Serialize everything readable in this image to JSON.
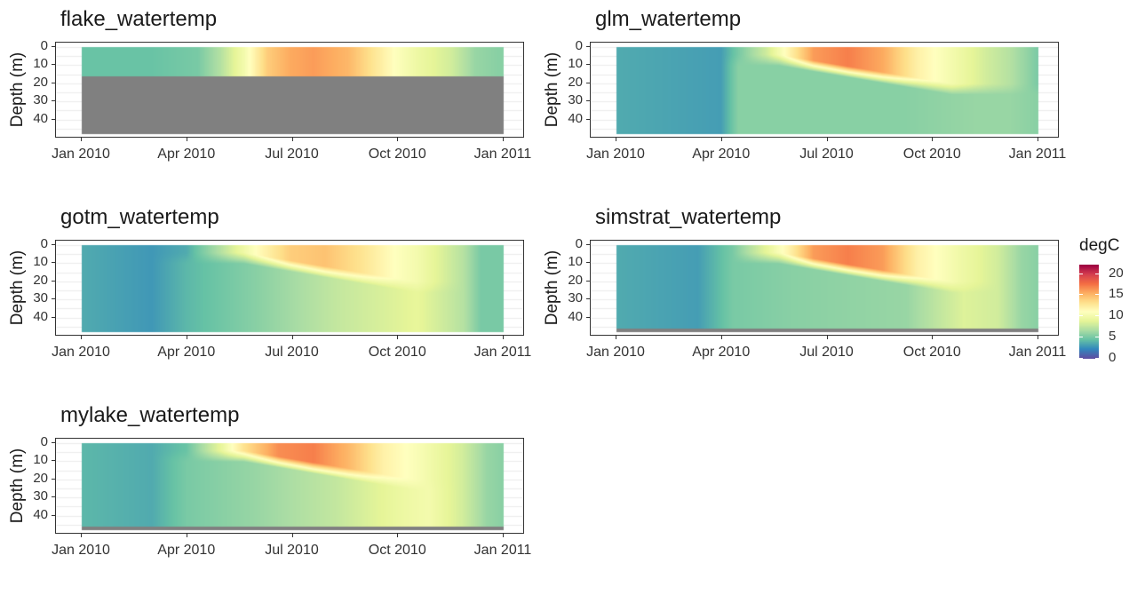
{
  "legend": {
    "title": "degC",
    "ticks": [
      "0",
      "5",
      "10",
      "15",
      "20"
    ],
    "tick_values": [
      0,
      5,
      10,
      15,
      20
    ],
    "range": [
      0,
      22
    ]
  },
  "chart_data": [
    {
      "type": "heatmap",
      "title": "flake_watertemp",
      "xlabel": "",
      "ylabel": "Depth (m)",
      "x_ticks": [
        "Jan 2010",
        "Apr 2010",
        "Jul 2010",
        "Oct 2010",
        "Jan 2011"
      ],
      "y_ticks": [
        "0",
        "10",
        "20",
        "30",
        "40"
      ],
      "xlim": [
        "2010-01-01",
        "2011-01-01"
      ],
      "ylim": [
        48,
        0
      ],
      "grey_below_depth": 16,
      "surface_profile": [
        [
          0,
          4.5
        ],
        [
          60,
          4.5
        ],
        [
          100,
          5
        ],
        [
          120,
          7
        ],
        [
          140,
          10
        ],
        [
          160,
          14
        ],
        [
          180,
          15.5
        ],
        [
          200,
          16
        ],
        [
          230,
          15
        ],
        [
          250,
          13
        ],
        [
          270,
          11
        ],
        [
          290,
          9.5
        ],
        [
          320,
          8
        ],
        [
          340,
          6
        ],
        [
          360,
          5.5
        ],
        [
          365,
          5.5
        ]
      ]
    },
    {
      "type": "heatmap",
      "title": "glm_watertemp",
      "xlabel": "",
      "ylabel": "Depth (m)",
      "x_ticks": [
        "Jan 2010",
        "Apr 2010",
        "Jul 2010",
        "Oct 2010",
        "Jan 2011"
      ],
      "y_ticks": [
        "0",
        "10",
        "20",
        "30",
        "40"
      ],
      "xlim": [
        "2010-01-01",
        "2011-01-01"
      ],
      "ylim": [
        48,
        0
      ],
      "surface_profile": [
        [
          0,
          3.5
        ],
        [
          90,
          3
        ],
        [
          105,
          5
        ],
        [
          130,
          8
        ],
        [
          150,
          12
        ],
        [
          170,
          16
        ],
        [
          200,
          17
        ],
        [
          230,
          15.5
        ],
        [
          260,
          12
        ],
        [
          290,
          10
        ],
        [
          320,
          8
        ],
        [
          340,
          7
        ],
        [
          365,
          5
        ]
      ],
      "deep_profile": [
        [
          0,
          3.5
        ],
        [
          90,
          3
        ],
        [
          105,
          5.5
        ],
        [
          150,
          5.5
        ],
        [
          250,
          5.5
        ],
        [
          310,
          6
        ],
        [
          340,
          6
        ],
        [
          365,
          5.5
        ]
      ]
    },
    {
      "type": "heatmap",
      "title": "gotm_watertemp",
      "xlabel": "",
      "ylabel": "Depth (m)",
      "x_ticks": [
        "Jan 2010",
        "Apr 2010",
        "Jul 2010",
        "Oct 2010",
        "Jan 2011"
      ],
      "y_ticks": [
        "0",
        "10",
        "20",
        "30",
        "40"
      ],
      "xlim": [
        "2010-01-01",
        "2011-01-01"
      ],
      "ylim": [
        48,
        0
      ],
      "surface_profile": [
        [
          0,
          3.5
        ],
        [
          60,
          2.8
        ],
        [
          90,
          3.5
        ],
        [
          120,
          7
        ],
        [
          150,
          11
        ],
        [
          180,
          14
        ],
        [
          210,
          14.5
        ],
        [
          240,
          13
        ],
        [
          270,
          11
        ],
        [
          290,
          10
        ],
        [
          330,
          7
        ],
        [
          345,
          5
        ],
        [
          365,
          5
        ]
      ],
      "deep_profile": [
        [
          0,
          3.5
        ],
        [
          60,
          2.8
        ],
        [
          90,
          4
        ],
        [
          150,
          5.5
        ],
        [
          220,
          7.5
        ],
        [
          270,
          8.5
        ],
        [
          290,
          9
        ],
        [
          330,
          7
        ],
        [
          345,
          5
        ],
        [
          365,
          5
        ]
      ]
    },
    {
      "type": "heatmap",
      "title": "simstrat_watertemp",
      "xlabel": "",
      "ylabel": "Depth (m)",
      "x_ticks": [
        "Jan 2010",
        "Apr 2010",
        "Jul 2010",
        "Oct 2010",
        "Jan 2011"
      ],
      "y_ticks": [
        "0",
        "10",
        "20",
        "30",
        "40"
      ],
      "xlim": [
        "2010-01-01",
        "2011-01-01"
      ],
      "ylim": [
        48,
        0
      ],
      "grey_below_depth": 46,
      "surface_profile": [
        [
          0,
          3.5
        ],
        [
          70,
          3
        ],
        [
          100,
          5
        ],
        [
          130,
          9
        ],
        [
          150,
          12
        ],
        [
          170,
          16
        ],
        [
          200,
          17
        ],
        [
          230,
          16
        ],
        [
          260,
          12
        ],
        [
          300,
          9.5
        ],
        [
          330,
          8
        ],
        [
          350,
          6
        ],
        [
          365,
          5.5
        ]
      ],
      "deep_profile": [
        [
          0,
          3.5
        ],
        [
          70,
          3
        ],
        [
          100,
          5
        ],
        [
          150,
          5.5
        ],
        [
          250,
          6
        ],
        [
          300,
          8.5
        ],
        [
          330,
          8
        ],
        [
          350,
          6
        ],
        [
          365,
          5.5
        ]
      ]
    },
    {
      "type": "heatmap",
      "title": "mylake_watertemp",
      "xlabel": "",
      "ylabel": "Depth (m)",
      "x_ticks": [
        "Jan 2010",
        "Apr 2010",
        "Jul 2010",
        "Oct 2010",
        "Jan 2011"
      ],
      "y_ticks": [
        "0",
        "10",
        "20",
        "30",
        "40"
      ],
      "xlim": [
        "2010-01-01",
        "2011-01-01"
      ],
      "ylim": [
        48,
        0
      ],
      "grey_below_depth": 46,
      "surface_profile": [
        [
          0,
          4
        ],
        [
          60,
          3.5
        ],
        [
          90,
          4.5
        ],
        [
          120,
          9
        ],
        [
          140,
          13
        ],
        [
          170,
          16.5
        ],
        [
          200,
          17
        ],
        [
          230,
          15
        ],
        [
          260,
          12
        ],
        [
          290,
          10.5
        ],
        [
          330,
          8
        ],
        [
          350,
          6
        ],
        [
          365,
          5.5
        ]
      ],
      "deep_profile": [
        [
          0,
          4
        ],
        [
          60,
          3.5
        ],
        [
          90,
          5
        ],
        [
          150,
          6
        ],
        [
          220,
          7.5
        ],
        [
          280,
          9.5
        ],
        [
          300,
          10
        ],
        [
          330,
          8
        ],
        [
          350,
          6
        ],
        [
          365,
          5.5
        ]
      ]
    }
  ]
}
